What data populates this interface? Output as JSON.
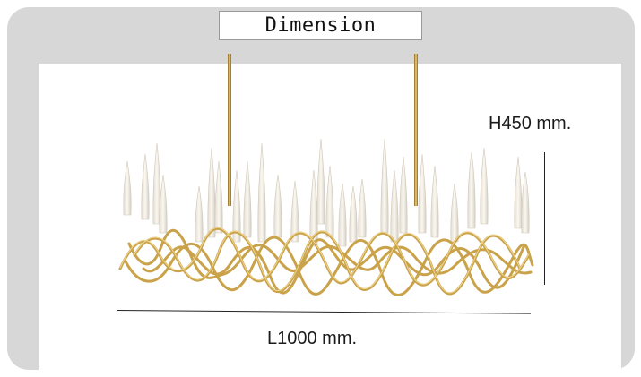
{
  "title": "Dimension",
  "height_label": "H450 mm.",
  "length_label": "L1000 mm.",
  "colors": {
    "frame": "#d7d7d7",
    "brass": "#c9a24a",
    "glass": "#f1ece2"
  },
  "image": {
    "name": "chandelier-product-image"
  }
}
